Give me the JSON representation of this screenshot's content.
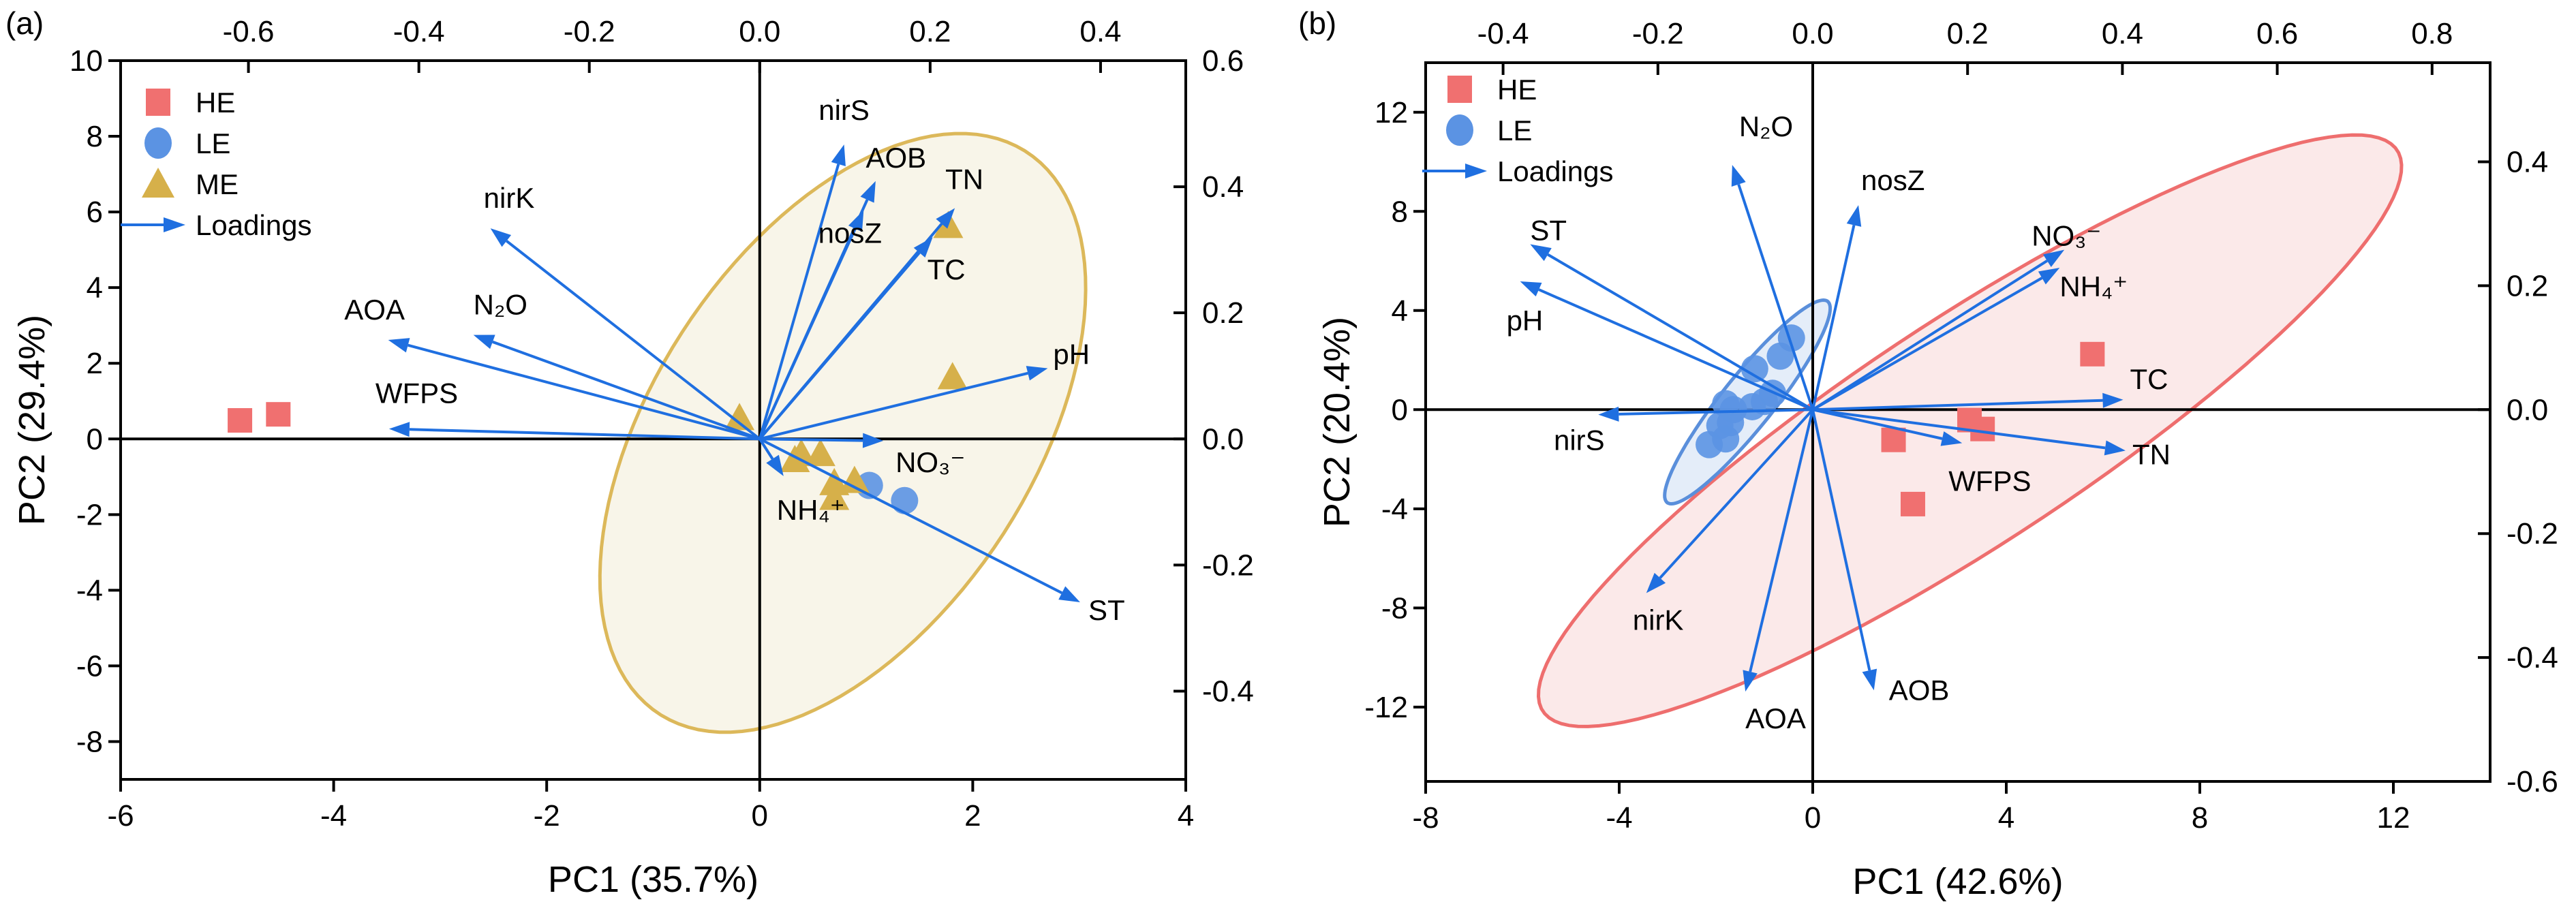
{
  "chart_data": [
    {
      "panel_label": "(a)",
      "type": "scatter",
      "subtype": "PCA biplot",
      "xlabel": "PC1 (35.7%)",
      "ylabel": "PC2 (29.4%)",
      "xlim": [
        -6,
        4
      ],
      "ylim": [
        -9,
        10
      ],
      "x_ticks": [
        -6,
        -4,
        -2,
        0,
        2,
        4
      ],
      "y_ticks": [
        -8,
        -6,
        -4,
        -2,
        0,
        2,
        4,
        6,
        8,
        10
      ],
      "top_axis": {
        "lim": [
          -0.75,
          0.5
        ],
        "ticks": [
          -0.6,
          -0.4,
          -0.2,
          0.0,
          0.2,
          0.4
        ]
      },
      "right_axis": {
        "lim": [
          -0.54,
          0.6
        ],
        "ticks": [
          -0.4,
          -0.2,
          0.0,
          0.2,
          0.4,
          0.6
        ]
      },
      "grid": false,
      "legend": {
        "placement": "top-left",
        "entries": [
          "HE",
          "LE",
          "ME",
          "Loadings"
        ]
      },
      "groups": [
        {
          "name": "HE",
          "marker": "square",
          "color": "#f07070",
          "points": [
            [
              -4.88,
              0.49
            ],
            [
              -4.52,
              0.65
            ]
          ]
        },
        {
          "name": "LE",
          "marker": "circle",
          "color": "#5b93e3",
          "points": [
            [
              1.03,
              -1.23
            ],
            [
              1.36,
              -1.63
            ]
          ]
        },
        {
          "name": "ME",
          "marker": "triangle",
          "color": "#d6b04a",
          "points": [
            [
              -0.19,
              0.52
            ],
            [
              1.77,
              5.6
            ],
            [
              1.81,
              1.6
            ],
            [
              0.33,
              -0.59
            ],
            [
              0.39,
              -0.43
            ],
            [
              0.57,
              -0.43
            ],
            [
              0.7,
              -1.2
            ],
            [
              0.89,
              -1.14
            ],
            [
              0.7,
              -1.59
            ]
          ]
        }
      ],
      "ellipses": [
        {
          "group": "ME",
          "center": [
            0.78,
            0.16
          ],
          "axis1": [
            1.45,
            7.78
          ],
          "axis2": [
            1.76,
            -1.45
          ],
          "stroke": "#dcb85a",
          "fill": "#f6f3e4"
        }
      ],
      "loadings_color": "#1f6fe0",
      "loadings": [
        {
          "label": "nirS",
          "x": 0.099,
          "y": 0.467
        },
        {
          "label": "AOB",
          "x": 0.136,
          "y": 0.409
        },
        {
          "label": "TN",
          "x": 0.229,
          "y": 0.366
        },
        {
          "label": "nosZ",
          "x": 0.122,
          "y": 0.363
        },
        {
          "label": "TC",
          "x": 0.203,
          "y": 0.32
        },
        {
          "label": "nirK",
          "x": -0.316,
          "y": 0.334
        },
        {
          "label": "N₂O",
          "x": -0.336,
          "y": 0.165
        },
        {
          "label": "AOA",
          "x": -0.436,
          "y": 0.157
        },
        {
          "label": "WFPS",
          "x": -0.435,
          "y": 0.016
        },
        {
          "label": "pH",
          "x": 0.338,
          "y": 0.112
        },
        {
          "label": "ST",
          "x": 0.376,
          "y": -0.259
        },
        {
          "label": "NO₃⁻",
          "x": 0.145,
          "y": -0.003
        },
        {
          "label": "NH₄⁺",
          "x": 0.028,
          "y": -0.059
        }
      ]
    },
    {
      "panel_label": "(b)",
      "type": "scatter",
      "subtype": "PCA biplot",
      "xlabel": "PC1 (42.6%)",
      "ylabel": "PC2 (20.4%)",
      "xlim": [
        -8,
        14
      ],
      "ylim": [
        -15,
        14
      ],
      "x_ticks": [
        -8,
        -4,
        0,
        4,
        8,
        12
      ],
      "y_ticks": [
        -12,
        -8,
        -4,
        0,
        4,
        8,
        12
      ],
      "top_axis": {
        "lim": [
          -0.5,
          0.875
        ],
        "ticks": [
          -0.4,
          -0.2,
          0.0,
          0.2,
          0.4,
          0.6,
          0.8
        ]
      },
      "right_axis": {
        "lim": [
          -0.6,
          0.56
        ],
        "ticks": [
          -0.6,
          -0.4,
          -0.2,
          0.0,
          0.2,
          0.4
        ]
      },
      "grid": false,
      "legend": {
        "placement": "top-left",
        "entries": [
          "HE",
          "LE",
          "Loadings"
        ]
      },
      "groups": [
        {
          "name": "HE",
          "marker": "square",
          "color": "#f07070",
          "points": [
            [
              5.78,
              2.24
            ],
            [
              3.24,
              -0.42
            ],
            [
              3.51,
              -0.78
            ],
            [
              1.67,
              -1.22
            ],
            [
              2.07,
              -3.81
            ]
          ]
        },
        {
          "name": "LE",
          "marker": "circle",
          "color": "#5b93e3",
          "points": [
            [
              -0.44,
              2.89
            ],
            [
              -0.67,
              2.16
            ],
            [
              -1.2,
              1.65
            ],
            [
              -1.0,
              0.33
            ],
            [
              -1.25,
              0.12
            ],
            [
              -0.83,
              0.66
            ],
            [
              -1.8,
              0.24
            ],
            [
              -1.64,
              0.0
            ],
            [
              -1.92,
              -0.64
            ],
            [
              -1.7,
              -0.52
            ],
            [
              -1.8,
              -1.18
            ],
            [
              -2.14,
              -1.41
            ]
          ]
        }
      ],
      "ellipses": [
        {
          "group": "HE",
          "center": [
            3.25,
            -0.85
          ],
          "axis1": [
            8.7,
            11.58
          ],
          "axis2": [
            1.97,
            -2.89
          ],
          "stroke": "#ee6e6e",
          "fill": "#fae3e3"
        },
        {
          "group": "LE",
          "center": [
            -1.35,
            0.31
          ],
          "axis1": [
            1.63,
            4.09
          ],
          "axis2": [
            0.52,
            -0.4
          ],
          "stroke": "#5a8fdb",
          "fill": "#dde9f7"
        }
      ],
      "loadings_color": "#1f6fe0",
      "loadings": [
        {
          "label": "N₂O",
          "x": -0.104,
          "y": 0.395
        },
        {
          "label": "nosZ",
          "x": 0.059,
          "y": 0.33
        },
        {
          "label": "ST",
          "x": -0.365,
          "y": 0.267
        },
        {
          "label": "pH",
          "x": -0.378,
          "y": 0.207
        },
        {
          "label": "NO₃⁻",
          "x": 0.325,
          "y": 0.258
        },
        {
          "label": "NH₄⁺",
          "x": 0.319,
          "y": 0.229
        },
        {
          "label": "TC",
          "x": 0.401,
          "y": 0.016
        },
        {
          "label": "nirS",
          "x": -0.277,
          "y": -0.008
        },
        {
          "label": "WFPS",
          "x": 0.193,
          "y": -0.054
        },
        {
          "label": "TN",
          "x": 0.404,
          "y": -0.066
        },
        {
          "label": "nirK",
          "x": -0.215,
          "y": -0.296
        },
        {
          "label": "AOA",
          "x": -0.087,
          "y": -0.455
        },
        {
          "label": "AOB",
          "x": 0.079,
          "y": -0.453
        }
      ]
    }
  ]
}
